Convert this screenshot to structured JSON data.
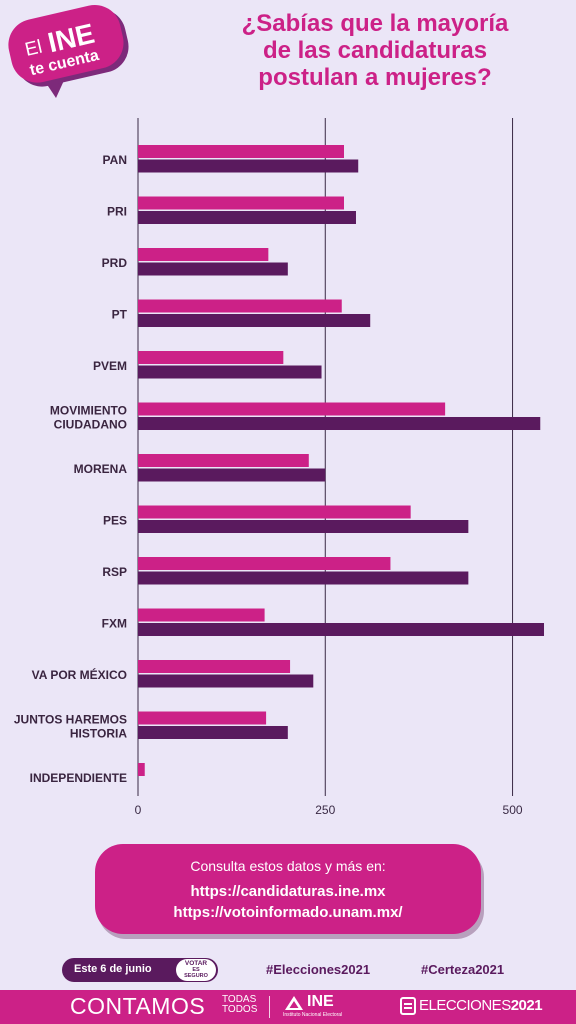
{
  "logo": {
    "line1": "El",
    "line2": "INE",
    "line3": "te cuenta"
  },
  "title_lines": [
    "¿Sabías que la mayoría",
    "de las candidaturas",
    "postulan a mujeres?"
  ],
  "colors": {
    "women": "#cc2187",
    "men": "#5a1a5e",
    "background": "#ebe6f7",
    "grid": "#3a2a45"
  },
  "chart_data": {
    "type": "bar",
    "orientation": "horizontal",
    "categories": [
      "PAN",
      "PRI",
      "PRD",
      "PT",
      "PVEM",
      "MOVIMIENTO CIUDADANO",
      "MORENA",
      "PES",
      "RSP",
      "FXM",
      "VA POR MÉXICO",
      "JUNTOS HAREMOS HISTORIA",
      "INDEPENDIENTE"
    ],
    "category_labels": [
      [
        "PAN"
      ],
      [
        "PRI"
      ],
      [
        "PRD"
      ],
      [
        "PT"
      ],
      [
        "PVEM"
      ],
      [
        "MOVIMIENTO",
        "CIUDADANO"
      ],
      [
        "MORENA"
      ],
      [
        "PES"
      ],
      [
        "RSP"
      ],
      [
        "FXM"
      ],
      [
        "VA POR MÉXICO"
      ],
      [
        "JUNTOS HAREMOS",
        "HISTORIA"
      ],
      [
        "INDEPENDIENTE"
      ]
    ],
    "series": [
      {
        "color": "#cc2187",
        "values": [
          275,
          275,
          174,
          272,
          194,
          410,
          228,
          364,
          337,
          169,
          203,
          171,
          9
        ]
      },
      {
        "color": "#5a1a5e",
        "values": [
          294,
          291,
          200,
          310,
          245,
          537,
          250,
          441,
          441,
          542,
          234,
          200,
          0
        ]
      }
    ],
    "xlim": [
      0,
      550
    ],
    "xticks": [
      0,
      250,
      500
    ],
    "xtick_labels": [
      "0",
      "250",
      "500"
    ],
    "grid": true,
    "legend": "none"
  },
  "cta": {
    "intro": "Consulta estos datos y más en:",
    "link1": "https://candidaturas.ine.mx",
    "link2": "https://votoinformado.unam.mx/"
  },
  "date_pill": {
    "text": "Este 6 de junio",
    "stamp_line1": "VOTAR",
    "stamp_line2": "ES",
    "stamp_line3": "SEGURO"
  },
  "hashtags": [
    "#Elecciones2021",
    "#Certeza2021"
  ],
  "footer": {
    "contamos": "CONTAMOS",
    "todas": "TODAS",
    "todos": "TODOS",
    "ine": "INE",
    "ine_sub": "Instituto Nacional Electoral",
    "elecciones": "ELECCIONES",
    "year": "2021"
  }
}
